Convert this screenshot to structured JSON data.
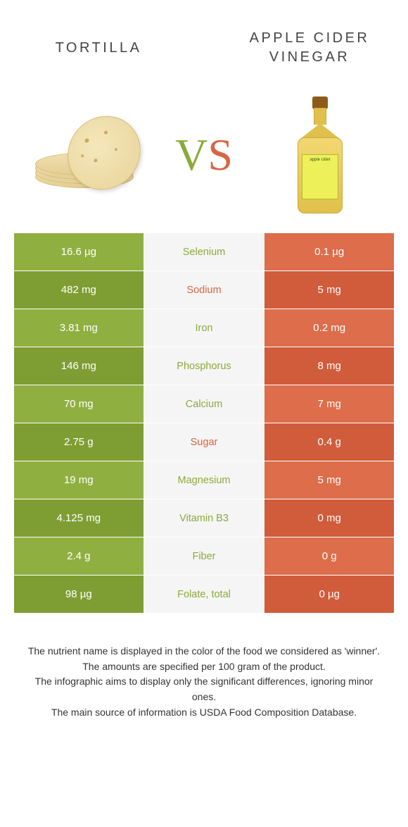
{
  "header": {
    "left_title": "Tortilla",
    "right_title": "Apple cider vinegar",
    "vs": {
      "v": "V",
      "s": "S"
    }
  },
  "colors": {
    "left": "#8aab3a",
    "right": "#d86543",
    "mid_bg": "#f5f5f5",
    "left_alt_dark": "#7e9e33",
    "left_alt_light": "#8fb041",
    "right_alt_dark": "#d05c3b",
    "right_alt_light": "#dd6d4b"
  },
  "table": {
    "rows": [
      {
        "left": "16.6 µg",
        "label": "Selenium",
        "right": "0.1 µg",
        "winner": "left"
      },
      {
        "left": "482 mg",
        "label": "Sodium",
        "right": "5 mg",
        "winner": "right"
      },
      {
        "left": "3.81 mg",
        "label": "Iron",
        "right": "0.2 mg",
        "winner": "left"
      },
      {
        "left": "146 mg",
        "label": "Phosphorus",
        "right": "8 mg",
        "winner": "left"
      },
      {
        "left": "70 mg",
        "label": "Calcium",
        "right": "7 mg",
        "winner": "left"
      },
      {
        "left": "2.75 g",
        "label": "Sugar",
        "right": "0.4 g",
        "winner": "right"
      },
      {
        "left": "19 mg",
        "label": "Magnesium",
        "right": "5 mg",
        "winner": "left"
      },
      {
        "left": "4.125 mg",
        "label": "Vitamin B3",
        "right": "0 mg",
        "winner": "left"
      },
      {
        "left": "2.4 g",
        "label": "Fiber",
        "right": "0 g",
        "winner": "left"
      },
      {
        "left": "98 µg",
        "label": "Folate, total",
        "right": "0 µg",
        "winner": "left"
      }
    ]
  },
  "footer": {
    "line1": "The nutrient name is displayed in the color of the food we considered as 'winner'.",
    "line2": "The amounts are specified per 100 gram of the product.",
    "line3": "The infographic aims to display only the significant differences, ignoring minor ones.",
    "line4": "The main source of information is USDA Food Composition Database."
  },
  "images": {
    "left_alt": "tortilla-stack",
    "right_alt": "apple-cider-vinegar-bottle",
    "bottle_label": "apple cider"
  }
}
